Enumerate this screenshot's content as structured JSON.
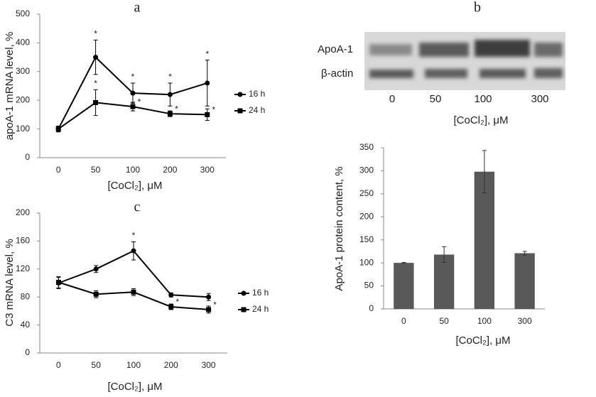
{
  "chart_data": [
    {
      "type": "line",
      "label": "a",
      "xlabel": "[CoCl₂], μM",
      "ylabel": "apoA-1 mRNA level, %",
      "categories": [
        "0",
        "50",
        "100",
        "200",
        "300"
      ],
      "ylim": [
        0,
        500
      ],
      "yticks": [
        0,
        100,
        200,
        300,
        400,
        500
      ],
      "series": [
        {
          "name": "16 h",
          "color": "#000000",
          "marker": "circle",
          "values": [
            100,
            350,
            225,
            220,
            260
          ],
          "errors": [
            10,
            60,
            35,
            40,
            80
          ],
          "annotations": [
            null,
            "*",
            "*",
            "*",
            "*"
          ]
        },
        {
          "name": "24 h",
          "color": "#000000",
          "marker": "square",
          "values": [
            100,
            192,
            178,
            153,
            150
          ],
          "errors": [
            10,
            45,
            15,
            10,
            20
          ],
          "annotations": [
            null,
            "*",
            "*",
            "*",
            "*"
          ]
        }
      ]
    },
    {
      "type": "line",
      "label": "c",
      "xlabel": "[CoCl₂], μM",
      "ylabel": "C3 mRNA level, %",
      "categories": [
        "0",
        "50",
        "100",
        "200",
        "300"
      ],
      "ylim": [
        0,
        200
      ],
      "yticks": [
        0,
        40,
        80,
        120,
        160,
        200
      ],
      "series": [
        {
          "name": "16 h",
          "color": "#000000",
          "marker": "circle",
          "values": [
            100,
            120,
            146,
            83,
            80
          ],
          "errors": [
            8,
            5,
            13,
            3,
            5
          ],
          "annotations": [
            null,
            null,
            "*",
            null,
            null
          ]
        },
        {
          "name": "24 h",
          "color": "#000000",
          "marker": "square",
          "values": [
            101,
            84,
            87,
            66,
            62
          ],
          "errors": [
            8,
            5,
            5,
            4,
            5
          ],
          "annotations": [
            null,
            null,
            null,
            "*",
            "*"
          ]
        }
      ]
    },
    {
      "type": "bar",
      "xlabel": "[CoCl₂], μM",
      "ylabel": "ApoA-1 protein content, %",
      "categories": [
        "0",
        "50",
        "100",
        "300"
      ],
      "color": "#595959",
      "values": [
        100,
        118,
        298,
        121
      ],
      "errors": [
        1,
        17,
        46,
        4
      ],
      "ylim": [
        0,
        350
      ],
      "yticks": [
        0,
        50,
        100,
        150,
        200,
        250,
        300,
        350
      ]
    }
  ],
  "blot": {
    "label": "b",
    "rows": [
      "ApoA-1",
      "β-actin"
    ],
    "lanes": [
      "0",
      "50",
      "100",
      "300"
    ],
    "xlabel": "[CoCl₂], μM"
  }
}
